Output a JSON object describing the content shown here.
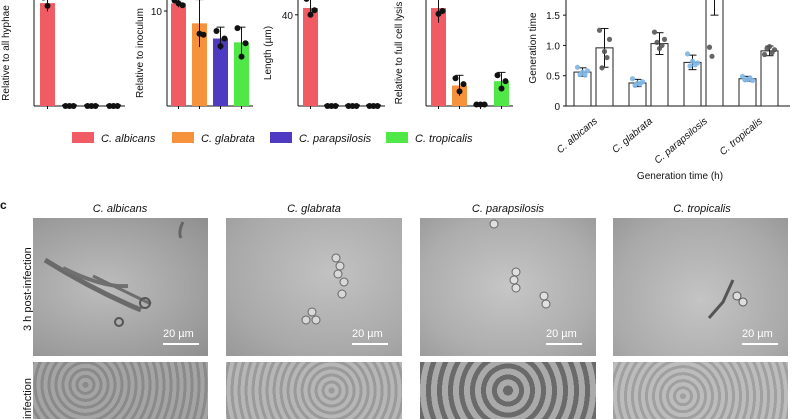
{
  "colors": {
    "C. albicans": "#f15b63",
    "C. glabrata": "#f6923c",
    "C. parapsilosis": "#4f3bc2",
    "C. tropicalis": "#4fe846",
    "bar_outline": "#222222",
    "point": "#111111"
  },
  "legend": {
    "items": [
      "C. albicans",
      "C. glabrata",
      "C. parapsilosis",
      "C. tropicalis"
    ]
  },
  "chart_data": [
    {
      "type": "bar",
      "panel": "hyphae",
      "ylabel": "Relative to all hyphae",
      "categories": [
        "C. albicans",
        "C. glabrata",
        "C. parapsilosis",
        "C. tropicalis"
      ],
      "values": [
        37,
        0,
        0,
        0
      ],
      "errors": [
        3,
        0,
        0,
        0
      ],
      "points": [
        [
          39,
          36,
          41
        ],
        [
          0,
          0,
          0
        ],
        [
          0,
          0,
          0
        ],
        [
          0,
          0,
          0
        ]
      ],
      "ylim": [
        0,
        41
      ]
    },
    {
      "type": "bar",
      "panel": "inoculum",
      "ylabel": "Relative to inoculum",
      "ytick_labels": [
        "10"
      ],
      "categories": [
        "C. albicans",
        "C. glabrata",
        "C. parapsilosis",
        "C. tropicalis"
      ],
      "values": [
        10.8,
        8.7,
        7.1,
        6.7
      ],
      "errors": [
        0.4,
        2.5,
        1.2,
        1.6
      ],
      "points": [
        [
          11.1,
          10.8,
          10.6
        ],
        [
          11.6,
          7.6,
          7.5
        ],
        [
          7.9,
          6.3,
          7.1
        ],
        [
          8.2,
          5.2,
          6.6
        ]
      ],
      "ylim": [
        0,
        12
      ]
    },
    {
      "type": "bar",
      "panel": "length",
      "ylabel": "Length (µm)",
      "ytick_labels": [
        "40"
      ],
      "categories": [
        "C. albicans",
        "C. glabrata",
        "C. parapsilosis",
        "C. tropicalis"
      ],
      "values": [
        43,
        0,
        0,
        0
      ],
      "errors": [
        4,
        0,
        0,
        0
      ],
      "points": [
        [
          47,
          40,
          42
        ],
        [
          0,
          0,
          0
        ],
        [
          0,
          0,
          0
        ],
        [
          0,
          0,
          0
        ]
      ],
      "ylim": [
        0,
        50
      ]
    },
    {
      "type": "bar",
      "panel": "lysis",
      "ylabel": "Relative to full cell lysis",
      "categories": [
        "C. albicans",
        "C. glabrata",
        "C. parapsilosis",
        "C. tropicalis"
      ],
      "values": [
        67,
        14,
        1,
        17
      ],
      "errors": [
        10,
        7,
        0.5,
        6
      ],
      "points": [
        [
          76,
          63,
          65
        ],
        [
          19,
          10,
          15
        ],
        [
          1,
          1,
          1
        ],
        [
          21,
          12,
          17
        ]
      ],
      "ylim": [
        0,
        78
      ]
    },
    {
      "type": "bar",
      "panel": "generation",
      "ylabel": "Generation time",
      "xlabel": "Generation time (h)",
      "yticks": [
        0,
        0.5,
        1.0,
        1.5
      ],
      "ytick_labels": [
        "0",
        "0.5",
        "1.0",
        "1.5"
      ],
      "categories": [
        "C. albicans",
        "C. glabrata",
        "C. parapsilosis",
        "C. tropicalis"
      ],
      "series": [
        {
          "values": [
            0.56,
            0.38,
            0.72,
            0.45
          ],
          "errors": [
            0.07,
            0.06,
            0.12,
            0.04
          ],
          "points": [
            [
              0.64,
              0.52,
              0.56,
              0.51,
              0.58
            ],
            [
              0.45,
              0.34,
              0.38,
              0.36,
              0.4
            ],
            [
              0.86,
              0.66,
              0.74,
              0.68,
              0.71
            ],
            [
              0.49,
              0.43,
              0.44,
              0.46,
              0.42
            ]
          ]
        },
        {
          "values": [
            0.96,
            1.03,
            2.0,
            0.91
          ],
          "errors": [
            0.32,
            0.18,
            0.5,
            0.08
          ],
          "points": [
            [
              1.25,
              0.63,
              0.9,
              0.8,
              1.1
            ],
            [
              1.22,
              1.05,
              0.95,
              1.0,
              1.1
            ],
            [
              0.97,
              0.82,
              2.0,
              2.0,
              2.0
            ],
            [
              0.85,
              0.95,
              0.98,
              0.88,
              0.93
            ]
          ]
        }
      ],
      "ylim": [
        0,
        1.75
      ]
    }
  ],
  "panel_c": {
    "letter": "c",
    "columns": [
      "C. albicans",
      "C. glabrata",
      "C. parapsilosis",
      "C. tropicalis"
    ],
    "row1_label": "3 h post-infection",
    "row2_label": "infection",
    "scale_text": "20 µm"
  }
}
